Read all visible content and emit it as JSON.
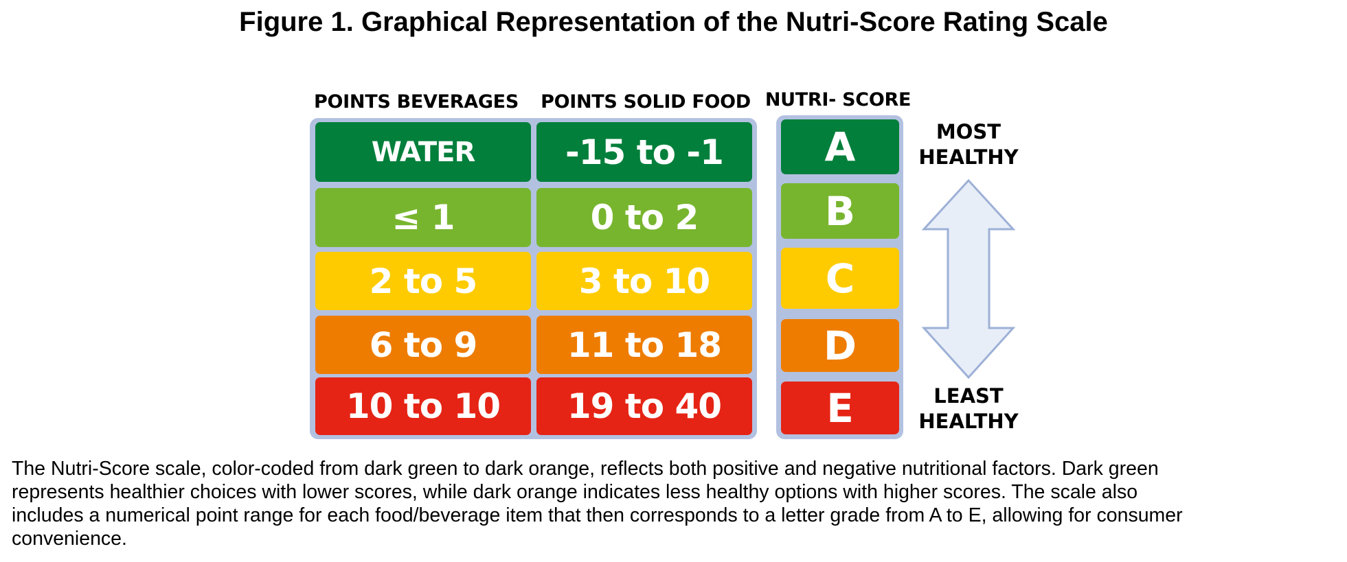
{
  "title": "Figure 1. Graphical Representation of the Nutri-Score Rating Scale",
  "headers": {
    "beverages": "POINTS BEVERAGES",
    "solid_food": "POINTS SOLID FOOD",
    "nutri_score": "NUTRI- SCORE"
  },
  "rows": [
    {
      "grade": "A",
      "beverages": "WATER",
      "solid_food": "-15 to -1",
      "color": "#027f3b"
    },
    {
      "grade": "B",
      "beverages": "≤ 1",
      "solid_food": "0 to 2",
      "color": "#78b52f"
    },
    {
      "grade": "C",
      "beverages": "2 to 5",
      "solid_food": "3 to 10",
      "color": "#fecb01"
    },
    {
      "grade": "D",
      "beverages": "6 to 9",
      "solid_food": "11 to 18",
      "color": "#ee7c00"
    },
    {
      "grade": "E",
      "beverages": "10 to 10",
      "solid_food": "19 to 40",
      "color": "#e52415"
    }
  ],
  "scale_labels": {
    "top_line1": "MOST",
    "top_line2": "HEALTHY",
    "bottom_line1": "LEAST",
    "bottom_line2": "HEALTHY"
  },
  "icons": {
    "arrow": "double-headed-vertical-arrow-icon"
  },
  "caption_lines": [
    "The Nutri-Score scale, color-coded from dark green to dark orange, reflects both positive and negative nutritional factors. Dark green",
    "represents healthier choices with lower scores, while dark orange indicates less healthy options with higher scores. The scale also",
    "includes a numerical point range for each food/beverage item that then corresponds to a letter grade from A to E, allowing for consumer",
    "convenience."
  ]
}
